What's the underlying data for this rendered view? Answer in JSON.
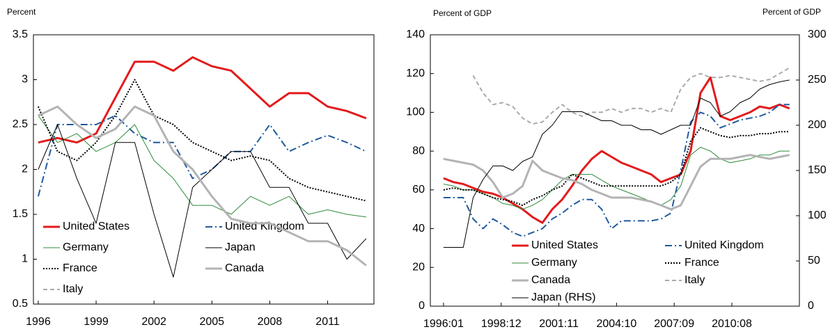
{
  "chart_data": [
    {
      "type": "line",
      "ylabel": "Percent",
      "x": [
        1996,
        1997,
        1998,
        1999,
        2000,
        2001,
        2002,
        2003,
        2004,
        2005,
        2006,
        2007,
        2008,
        2009,
        2010,
        2011,
        2012,
        2013
      ],
      "xlim": [
        1995.75,
        2013.4
      ],
      "xticks": [
        1996,
        1999,
        2002,
        2005,
        2008,
        2011
      ],
      "ylim": [
        0.5,
        3.5
      ],
      "yticks": [
        0.5,
        1,
        1.5,
        2,
        2.5,
        3,
        3.5
      ],
      "series": [
        {
          "name": "United States",
          "color": "#e31a1c",
          "style": "thick",
          "values": [
            2.3,
            2.35,
            2.3,
            2.4,
            2.8,
            3.2,
            3.2,
            3.1,
            3.25,
            3.15,
            3.1,
            2.9,
            2.7,
            2.85,
            2.85,
            2.7,
            2.65,
            2.57
          ]
        },
        {
          "name": "United Kingdom",
          "color": "#1f5a9e",
          "style": "dashdot",
          "values": [
            1.7,
            2.5,
            2.5,
            2.5,
            2.6,
            2.4,
            2.3,
            2.3,
            1.9,
            2.0,
            2.2,
            2.2,
            2.5,
            2.2,
            2.3,
            2.38,
            2.3,
            2.2
          ]
        },
        {
          "name": "Germany",
          "color": "#2e8b3a",
          "style": "thin",
          "values": [
            2.6,
            2.3,
            2.4,
            2.2,
            2.3,
            2.5,
            2.1,
            1.9,
            1.6,
            1.6,
            1.5,
            1.7,
            1.6,
            1.7,
            1.5,
            1.55,
            1.5,
            1.47
          ]
        },
        {
          "name": "Japan",
          "color": "#000000",
          "style": "thin",
          "values": [
            2.0,
            2.5,
            1.9,
            1.4,
            2.3,
            2.3,
            1.5,
            0.8,
            1.8,
            2.0,
            2.2,
            2.2,
            1.8,
            1.8,
            1.4,
            1.4,
            1.0,
            1.23
          ]
        },
        {
          "name": "France",
          "color": "#000000",
          "style": "dotted",
          "values": [
            2.7,
            2.2,
            2.1,
            2.3,
            2.6,
            3.0,
            2.6,
            2.5,
            2.3,
            2.2,
            2.1,
            2.15,
            2.1,
            1.9,
            1.8,
            1.75,
            1.7,
            1.65
          ]
        },
        {
          "name": "Canada",
          "color": "#b3b3b3",
          "style": "thick",
          "values": [
            2.6,
            2.7,
            2.5,
            2.35,
            2.45,
            2.7,
            2.6,
            2.2,
            2.0,
            1.7,
            1.45,
            1.4,
            1.4,
            1.3,
            1.2,
            1.2,
            1.1,
            0.93
          ]
        },
        {
          "name": "Italy",
          "color": "#aaaaaa",
          "style": "dashed",
          "values": [
            null,
            null,
            null,
            null,
            null,
            null,
            null,
            null,
            null,
            null,
            null,
            null,
            null,
            null,
            null,
            null,
            null,
            null
          ]
        }
      ]
    },
    {
      "type": "line",
      "ylabel": "Percent of GDP",
      "y2label": "Percent of GDP",
      "x": [
        "1996:01",
        "1996:07",
        "1997:01",
        "1997:07",
        "1998:01",
        "1998:07",
        "1999:01",
        "1999:07",
        "2000:01",
        "2000:07",
        "2001:01",
        "2001:07",
        "2002:01",
        "2002:07",
        "2003:01",
        "2003:07",
        "2004:01",
        "2004:07",
        "2005:01",
        "2005:07",
        "2006:01",
        "2006:07",
        "2007:01",
        "2007:07",
        "2008:01",
        "2008:07",
        "2009:01",
        "2009:07",
        "2010:01",
        "2010:07",
        "2011:01",
        "2011:07",
        "2012:01",
        "2012:07",
        "2013:01",
        "2013:07"
      ],
      "xlim": [
        "1995:05",
        "2014:01"
      ],
      "xticks": [
        "1996:01",
        "1998:12",
        "2001:11",
        "2004:10",
        "2007:09",
        "2010:08"
      ],
      "ylim": [
        0,
        140
      ],
      "yticks": [
        0,
        20,
        40,
        60,
        80,
        100,
        120,
        140
      ],
      "y2lim": [
        0,
        300
      ],
      "y2ticks": [
        0,
        50,
        100,
        150,
        200,
        250,
        300
      ],
      "series": [
        {
          "name": "United States",
          "color": "#e31a1c",
          "style": "thick",
          "values": [
            66,
            64,
            63,
            61,
            59,
            58,
            56,
            53,
            50,
            46,
            43,
            50,
            55,
            62,
            70,
            76,
            80,
            77,
            74,
            72,
            70,
            68,
            64,
            66,
            68,
            80,
            110,
            118,
            98,
            96,
            98,
            100,
            103,
            102,
            104,
            102
          ]
        },
        {
          "name": "United Kingdom",
          "color": "#1f5a9e",
          "style": "dashdot",
          "values": [
            56,
            56,
            56,
            45,
            40,
            45,
            42,
            38,
            36,
            38,
            40,
            45,
            48,
            52,
            55,
            55,
            50,
            40,
            44,
            44,
            44,
            44,
            45,
            48,
            70,
            95,
            100,
            98,
            92,
            94,
            96,
            97,
            98,
            100,
            104,
            104
          ]
        },
        {
          "name": "Germany",
          "color": "#2e8b3a",
          "style": "thin",
          "values": [
            63,
            62,
            60,
            60,
            58,
            56,
            53,
            52,
            50,
            52,
            55,
            60,
            65,
            68,
            68,
            68,
            65,
            62,
            60,
            58,
            56,
            54,
            52,
            55,
            62,
            78,
            82,
            80,
            76,
            74,
            75,
            76,
            78,
            78,
            80,
            80
          ]
        },
        {
          "name": "France",
          "color": "#000000",
          "style": "dotted",
          "values": [
            60,
            61,
            60,
            60,
            58,
            56,
            55,
            54,
            52,
            55,
            57,
            60,
            62,
            68,
            66,
            64,
            62,
            62,
            62,
            62,
            62,
            62,
            62,
            64,
            68,
            85,
            92,
            90,
            88,
            87,
            88,
            88,
            89,
            89,
            90,
            90
          ]
        },
        {
          "name": "Canada",
          "color": "#b3b3b3",
          "style": "thick",
          "values": [
            76,
            75,
            74,
            73,
            70,
            64,
            56,
            58,
            62,
            75,
            70,
            68,
            66,
            65,
            63,
            60,
            58,
            56,
            56,
            56,
            55,
            54,
            52,
            50,
            52,
            62,
            72,
            76,
            76,
            76,
            77,
            78,
            77,
            76,
            77,
            78
          ]
        },
        {
          "name": "Italy",
          "color": "#aaaaaa",
          "style": "dashed",
          "values": [
            null,
            null,
            null,
            119,
            110,
            104,
            105,
            103,
            97,
            94,
            95,
            100,
            104,
            100,
            98,
            100,
            100,
            102,
            100,
            102,
            102,
            100,
            102,
            100,
            112,
            118,
            120,
            118,
            118,
            119,
            118,
            117,
            116,
            117,
            120,
            123
          ]
        },
        {
          "name": "Japan (RHS)",
          "color": "#000000",
          "style": "thin",
          "axis": "y2",
          "values": [
            65,
            65,
            65,
            120,
            140,
            155,
            155,
            150,
            160,
            165,
            190,
            200,
            215,
            215,
            215,
            210,
            205,
            205,
            200,
            200,
            195,
            195,
            190,
            195,
            200,
            200,
            230,
            225,
            210,
            215,
            225,
            230,
            240,
            245,
            248,
            250
          ]
        }
      ]
    }
  ]
}
